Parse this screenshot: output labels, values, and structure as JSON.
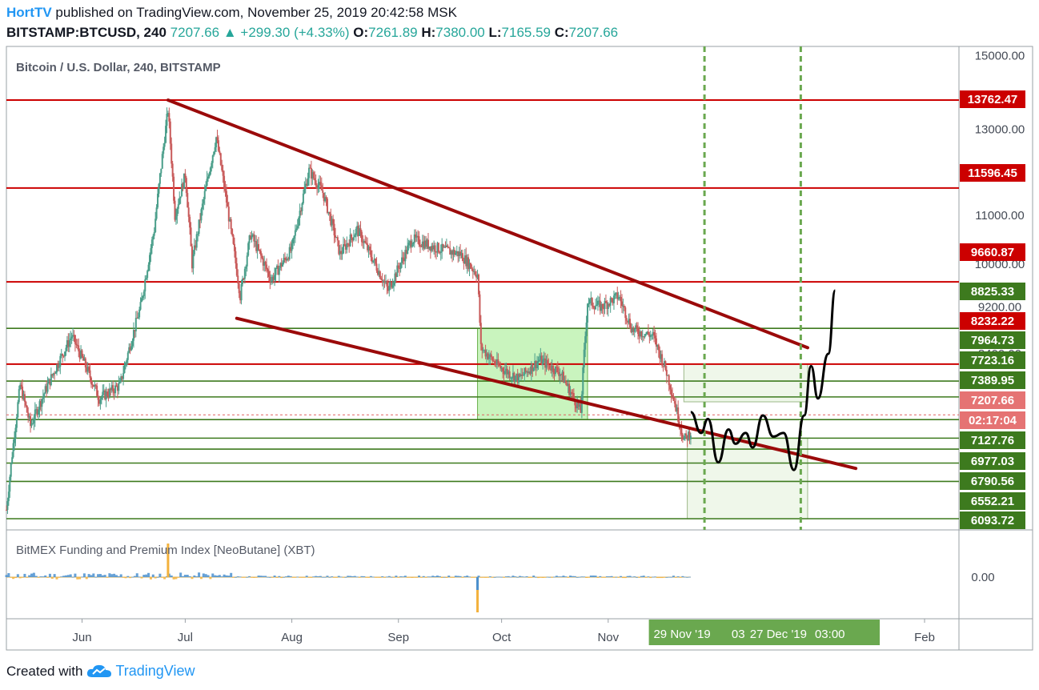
{
  "header": {
    "publisher": "HortTV",
    "published_text": "published on TradingView.com, November 25, 2019 20:42:58 MSK",
    "symbol": "BITSTAMP:BTCUSD, 240",
    "last": "7207.66",
    "change": "+299.30 (+4.33%)",
    "open_label": "O:",
    "open": "7261.89",
    "high_label": "H:",
    "high": "7380.00",
    "low_label": "L:",
    "low": "7165.59",
    "close_label": "C:",
    "close": "7207.66"
  },
  "footer": {
    "created_with": "Created with",
    "brand": "TradingView"
  },
  "colors": {
    "resistance": "#cc0000",
    "support": "#3d7a1e",
    "channel": "#9b0a0a",
    "vertical": "#6aa84f",
    "projection": "#000000",
    "candle_up": "#4a9e8a",
    "candle_down": "#c85a5a",
    "index_up": "#4a90d0",
    "index_down": "#f3b13c"
  },
  "chart_data": [
    {
      "type": "candlestick",
      "title": "Bitcoin / U.S. Dollar, 240, BITSTAMP",
      "y_scale": "log",
      "ylim": [
        5900,
        15600
      ],
      "y_tick_labels": [
        "15000.00",
        "13000.00",
        "12000.00",
        "11000.00",
        "10000.00",
        "9200.00",
        "8400.00"
      ],
      "x_tick_labels": [
        "Jun",
        "Jul",
        "Aug",
        "Sep",
        "Oct",
        "Nov",
        "Feb"
      ],
      "x_markers": [
        "29 Nov '19",
        "03",
        "27 Dec '19",
        "03:00"
      ],
      "horizontal_levels_resistance": [
        "13762.47",
        "11596.45",
        "9660.87",
        "8232.22"
      ],
      "horizontal_levels_support": [
        "8825.33",
        "7964.73",
        "7723.16",
        "7389.95",
        "7127.76",
        "6977.03",
        "6790.56",
        "6552.21",
        "6093.72"
      ],
      "last_price_label": "7207.66",
      "countdown_label": "02:17:04",
      "price_path": [
        [
          "2019-05-10",
          6200
        ],
        [
          "2019-05-14",
          7900
        ],
        [
          "2019-05-17",
          7300
        ],
        [
          "2019-05-22",
          7900
        ],
        [
          "2019-05-29",
          8700
        ],
        [
          "2019-06-06",
          7700
        ],
        [
          "2019-06-12",
          7900
        ],
        [
          "2019-06-18",
          9200
        ],
        [
          "2019-06-22",
          10700
        ],
        [
          "2019-06-26",
          13500
        ],
        [
          "2019-06-28",
          11000
        ],
        [
          "2019-07-01",
          11900
        ],
        [
          "2019-07-03",
          10000
        ],
        [
          "2019-07-07",
          11600
        ],
        [
          "2019-07-10",
          12800
        ],
        [
          "2019-07-14",
          10800
        ],
        [
          "2019-07-17",
          9400
        ],
        [
          "2019-07-20",
          10600
        ],
        [
          "2019-07-26",
          9700
        ],
        [
          "2019-08-01",
          10300
        ],
        [
          "2019-08-06",
          12000
        ],
        [
          "2019-08-10",
          11500
        ],
        [
          "2019-08-15",
          10200
        ],
        [
          "2019-08-20",
          10700
        ],
        [
          "2019-08-29",
          9500
        ],
        [
          "2019-09-05",
          10500
        ],
        [
          "2019-09-13",
          10300
        ],
        [
          "2019-09-19",
          10200
        ],
        [
          "2019-09-24",
          9800
        ],
        [
          "2019-09-25",
          8500
        ],
        [
          "2019-09-30",
          8200
        ],
        [
          "2019-10-06",
          8000
        ],
        [
          "2019-10-12",
          8300
        ],
        [
          "2019-10-18",
          8100
        ],
        [
          "2019-10-24",
          7500
        ],
        [
          "2019-10-26",
          9300
        ],
        [
          "2019-10-30",
          9200
        ],
        [
          "2019-11-04",
          9400
        ],
        [
          "2019-11-08",
          8800
        ],
        [
          "2019-11-14",
          8700
        ],
        [
          "2019-11-18",
          8100
        ],
        [
          "2019-11-21",
          7500
        ],
        [
          "2019-11-23",
          7100
        ],
        [
          "2019-11-25",
          7207.66
        ]
      ],
      "channel_upper": [
        [
          "2019-06-26",
          13762
        ],
        [
          "2019-12-29",
          8500
        ]
      ],
      "channel_lower": [
        [
          "2019-07-16",
          9000
        ],
        [
          "2020-01-12",
          6720
        ]
      ],
      "projection_path": [
        [
          "2019-11-25",
          7500
        ],
        [
          "2019-11-28",
          7200
        ],
        [
          "2019-11-30",
          7400
        ],
        [
          "2019-12-03",
          6800
        ],
        [
          "2019-12-06",
          7250
        ],
        [
          "2019-12-08",
          7050
        ],
        [
          "2019-12-11",
          7200
        ],
        [
          "2019-12-13",
          7000
        ],
        [
          "2019-12-16",
          7450
        ],
        [
          "2019-12-19",
          7150
        ],
        [
          "2019-12-22",
          7200
        ],
        [
          "2019-12-25",
          6700
        ],
        [
          "2019-12-28",
          7450
        ],
        [
          "2019-12-30",
          8200
        ],
        [
          "2020-01-01",
          7700
        ],
        [
          "2020-01-04",
          8400
        ],
        [
          "2020-01-06",
          9500
        ]
      ],
      "zones": [
        {
          "from": "2019-09-24",
          "to": "2019-10-26",
          "high": 8825,
          "low": 7390
        },
        {
          "from": "2019-11-23",
          "to": "2019-12-29",
          "high": 8232,
          "low": 7650
        },
        {
          "from": "2019-11-24",
          "to": "2019-12-29",
          "high": 7127,
          "low": 6093
        }
      ],
      "vertical_lines": [
        "2019-11-29",
        "2019-12-27"
      ]
    },
    {
      "type": "area",
      "title": "BitMEX Funding and Premium Index [NeoButane] (XBT)",
      "y_tick_labels": [
        "0.00"
      ],
      "note_spike_date": "2019-09-24"
    }
  ]
}
